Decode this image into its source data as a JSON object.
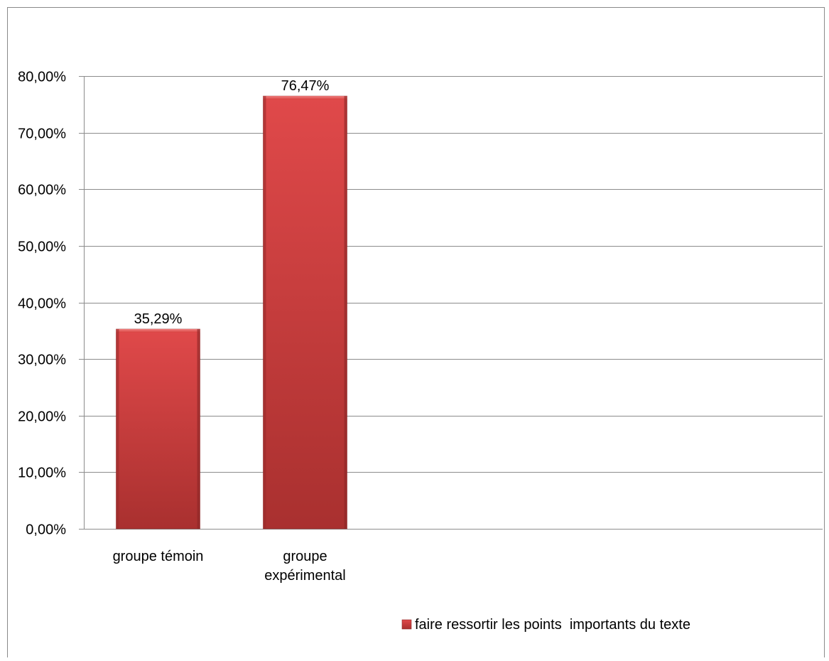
{
  "chart_data": {
    "type": "bar",
    "categories": [
      "groupe témoin",
      "groupe expérimental"
    ],
    "category_lines": [
      [
        "groupe témoin"
      ],
      [
        "groupe",
        "expérimental"
      ]
    ],
    "series": [
      {
        "name": "faire ressortir les points  importants du texte",
        "values": [
          35.29,
          76.47
        ],
        "color": "#c0393b"
      }
    ],
    "data_labels": [
      "35,29%",
      "76,47%"
    ],
    "y_ticks": [
      "0,00%",
      "10,00%",
      "20,00%",
      "30,00%",
      "40,00%",
      "50,00%",
      "60,00%",
      "70,00%",
      "80,00%"
    ],
    "ylim": [
      0,
      80
    ],
    "ystep": 10,
    "title": "",
    "xlabel": "",
    "ylabel": "",
    "grid": true,
    "legend_position": "bottom-right"
  }
}
